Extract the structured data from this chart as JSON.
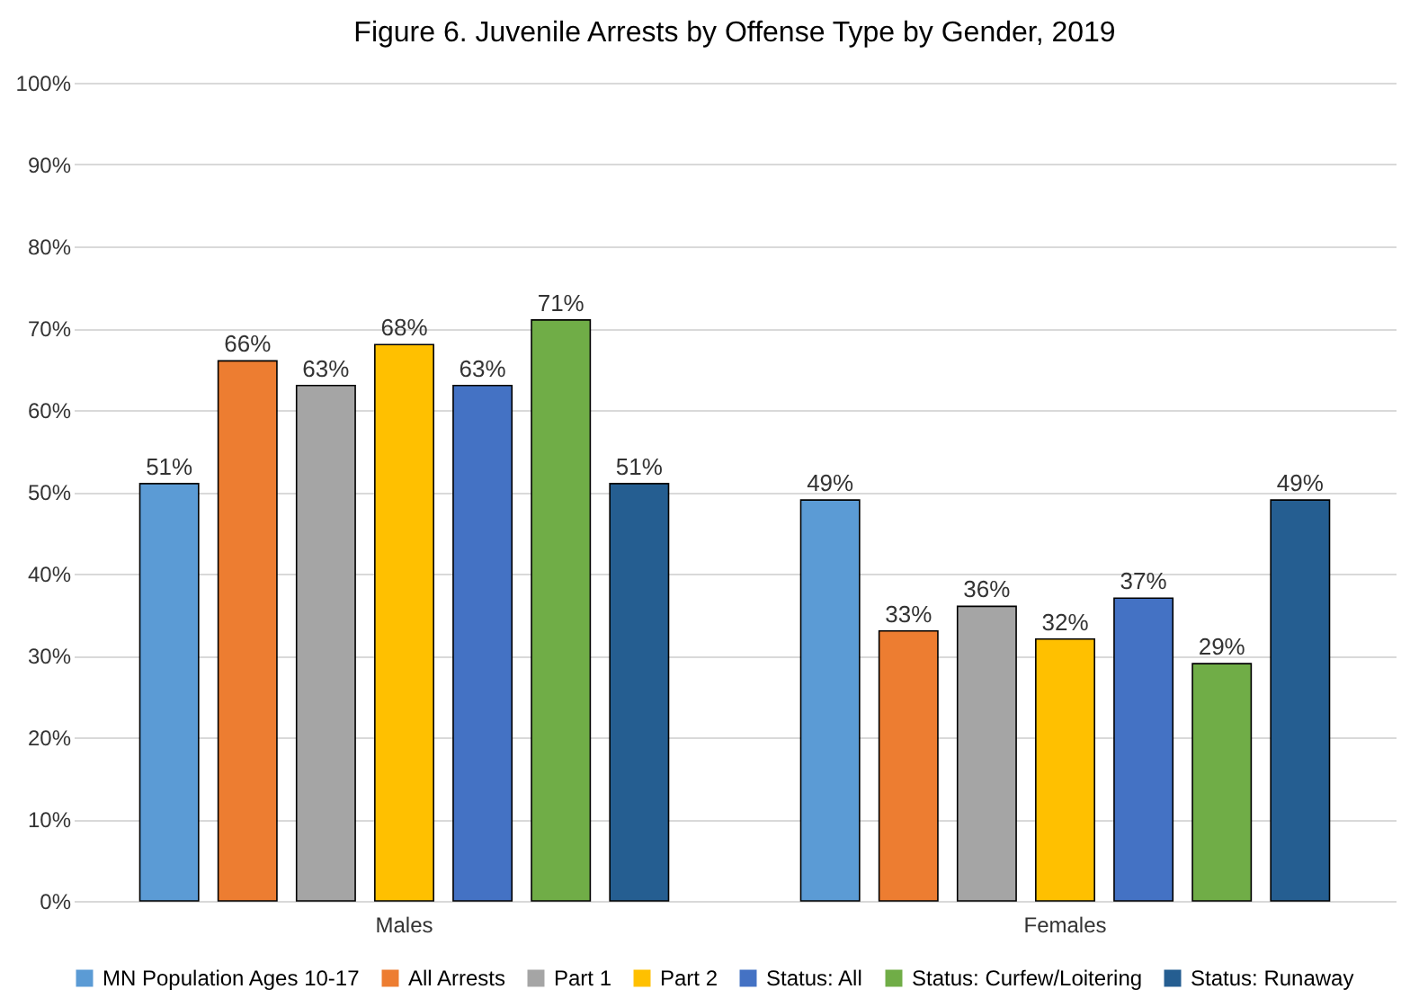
{
  "chart_data": {
    "type": "bar",
    "title": "Figure 6.  Juvenile Arrests by Offense Type by Gender, 2019",
    "categories": [
      "Males",
      "Females"
    ],
    "series": [
      {
        "name": "MN Population Ages 10-17",
        "color": "#5b9bd5",
        "values": [
          51,
          49
        ],
        "value_labels": [
          "51%",
          "49%"
        ]
      },
      {
        "name": "All Arrests",
        "color": "#ed7d31",
        "values": [
          66,
          33
        ],
        "value_labels": [
          "66%",
          "33%"
        ]
      },
      {
        "name": "Part 1",
        "color": "#a5a5a5",
        "values": [
          63,
          36
        ],
        "value_labels": [
          "63%",
          "36%"
        ]
      },
      {
        "name": "Part 2",
        "color": "#ffc000",
        "values": [
          68,
          32
        ],
        "value_labels": [
          "68%",
          "32%"
        ]
      },
      {
        "name": "Status: All",
        "color": "#4472c4",
        "values": [
          63,
          37
        ],
        "value_labels": [
          "63%",
          "37%"
        ]
      },
      {
        "name": "Status: Curfew/Loitering",
        "color": "#70ad47",
        "values": [
          71,
          29
        ],
        "value_labels": [
          "71%",
          "29%"
        ]
      },
      {
        "name": "Status: Runaway",
        "color": "#255e91",
        "values": [
          51,
          49
        ],
        "value_labels": [
          "51%",
          "49%"
        ]
      }
    ],
    "ylim": [
      0,
      100
    ],
    "yticks": [
      {
        "value": 0,
        "label": "0%"
      },
      {
        "value": 10,
        "label": "10%"
      },
      {
        "value": 20,
        "label": "20%"
      },
      {
        "value": 30,
        "label": "30%"
      },
      {
        "value": 40,
        "label": "40%"
      },
      {
        "value": 50,
        "label": "50%"
      },
      {
        "value": 60,
        "label": "60%"
      },
      {
        "value": 70,
        "label": "70%"
      },
      {
        "value": 80,
        "label": "80%"
      },
      {
        "value": 90,
        "label": "90%"
      },
      {
        "value": 100,
        "label": "100%"
      }
    ],
    "grid": "y",
    "legend": "bottom"
  }
}
